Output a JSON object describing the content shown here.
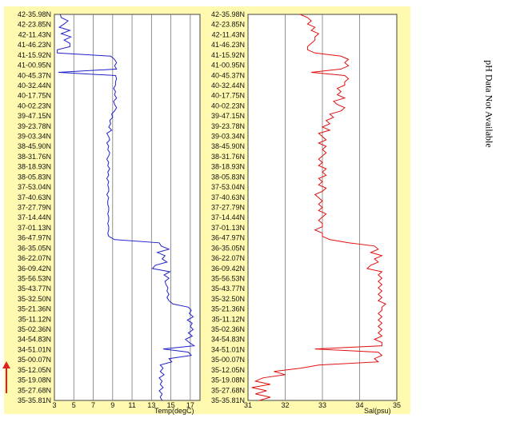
{
  "side_note": "pH Data Not Available",
  "direction_arrow": {
    "icon": "red-up-arrow-icon",
    "color": "#e02020"
  },
  "chart_data": [
    {
      "type": "line",
      "xlabel": "Temp(degC)",
      "xlim": [
        3,
        18
      ],
      "xticks": [
        "3",
        "5",
        "7",
        "9",
        "11",
        "13",
        "15",
        "17"
      ],
      "line_color": "#2222cc",
      "background": "#fffab0",
      "grid": true,
      "y_tick_labels": [
        "42-35.98N",
        "42-23.85N",
        "42-11.43N",
        "41-46.23N",
        "41-15.92N",
        "41-00.95N",
        "40-45.37N",
        "40-32.44N",
        "40-17.75N",
        "40-02.23N",
        "39-47.15N",
        "39-23.78N",
        "39-03.34N",
        "38-45.90N",
        "38-31.76N",
        "38-18.93N",
        "38-05.83N",
        "37-53.04N",
        "37-40.63N",
        "37-27.79N",
        "37-14.44N",
        "37-01.13N",
        "36-47.97N",
        "36-35.05N",
        "36-22.07N",
        "36-09.42N",
        "35-56.53N",
        "35-43.77N",
        "35-32.50N",
        "35-21.36N",
        "35-11.12N",
        "35-02.36N",
        "34-54.83N",
        "34-51.01N",
        "35-00.07N",
        "35-12.05N",
        "35-19.08N",
        "35-27.68N",
        "35-35.81N"
      ],
      "values": [
        3.6,
        3.7,
        4.4,
        4.0,
        3.5,
        4.6,
        3.7,
        4.7,
        4.0,
        4.6,
        4.6,
        3.3,
        3.3,
        8.8,
        9.2,
        9.4,
        9.2,
        9.4,
        3.4,
        9.3,
        9.4,
        9.3,
        9.3,
        9.1,
        9.3,
        9.2,
        9.4,
        9.1,
        9.2,
        9.4,
        9.2,
        8.9,
        9.0,
        8.7,
        8.8,
        8.6,
        8.9,
        8.4,
        8.6,
        8.7,
        8.4,
        8.6,
        8.5,
        8.7,
        8.6,
        8.4,
        8.6,
        8.5,
        8.7,
        8.5,
        8.6,
        8.4,
        8.6,
        8.5,
        8.6,
        8.6,
        8.4,
        8.6,
        8.5,
        8.5,
        8.6,
        8.6,
        8.5,
        8.6,
        8.6,
        8.5,
        8.6,
        8.6,
        8.5,
        8.6,
        9.2,
        13.8,
        14.0,
        14.8,
        13.6,
        14.4,
        14.1,
        14.6,
        13.4,
        13.1,
        14.9,
        14.3,
        14.8,
        14.4,
        14.5,
        14.7,
        14.6,
        14.8,
        14.6,
        14.8,
        15.2,
        16.8,
        17.1,
        16.9,
        17.3,
        16.7,
        17.2,
        17.0,
        17.3,
        16.8,
        17.2,
        16.5,
        16.9,
        17.4,
        14.2,
        16.8,
        17.1,
        14.8,
        15.1,
        13.9,
        14.2,
        13.9,
        14.3,
        13.8,
        14.1,
        13.9,
        14.2,
        13.8,
        14.1,
        13.9,
        14.1
      ]
    },
    {
      "type": "line",
      "xlabel": "Sal(psu)",
      "xlim": [
        31,
        35
      ],
      "xticks": [
        "31",
        "32",
        "33",
        "34",
        "35"
      ],
      "line_color": "#e01010",
      "background": "#fffab0",
      "grid": true,
      "y_tick_labels": [
        "42-35.98N",
        "42-23.85N",
        "42-11.43N",
        "41-46.23N",
        "41-15.92N",
        "41-00.95N",
        "40-45.37N",
        "40-32.44N",
        "40-17.75N",
        "40-02.23N",
        "39-47.15N",
        "39-23.78N",
        "39-03.34N",
        "38-45.90N",
        "38-31.76N",
        "38-18.93N",
        "38-05.83N",
        "37-53.04N",
        "37-40.63N",
        "37-27.79N",
        "37-14.44N",
        "37-01.13N",
        "36-47.97N",
        "36-35.05N",
        "36-22.07N",
        "36-09.42N",
        "35-56.53N",
        "35-43.77N",
        "35-32.50N",
        "35-21.36N",
        "35-11.12N",
        "35-02.36N",
        "34-54.83N",
        "34-51.01N",
        "35-00.07N",
        "35-12.05N",
        "35-19.08N",
        "35-27.68N",
        "35-35.81N"
      ],
      "values": [
        32.4,
        32.6,
        32.7,
        32.6,
        32.8,
        32.7,
        32.9,
        32.8,
        32.8,
        32.7,
        32.6,
        32.6,
        32.8,
        33.5,
        33.7,
        33.6,
        33.7,
        33.5,
        32.7,
        33.6,
        33.7,
        33.6,
        33.6,
        33.4,
        33.5,
        33.4,
        33.6,
        33.3,
        33.4,
        33.6,
        33.5,
        33.2,
        33.3,
        33.1,
        33.2,
        33.0,
        33.2,
        32.9,
        33.0,
        33.1,
        32.9,
        33.1,
        33.0,
        33.1,
        33.0,
        32.9,
        33.0,
        32.9,
        33.1,
        33.0,
        33.1,
        32.9,
        33.0,
        32.9,
        33.1,
        33.0,
        32.8,
        32.9,
        33.0,
        32.9,
        33.0,
        32.9,
        33.1,
        33.0,
        32.9,
        33.0,
        33.0,
        32.8,
        33.0,
        33.0,
        33.2,
        33.7,
        34.4,
        34.5,
        34.3,
        34.6,
        34.4,
        34.5,
        34.3,
        34.2,
        34.6,
        34.5,
        34.6,
        34.5,
        34.6,
        34.5,
        34.6,
        34.5,
        34.6,
        34.5,
        34.7,
        34.6,
        34.6,
        34.5,
        34.6,
        34.5,
        34.6,
        34.5,
        34.6,
        34.5,
        34.6,
        34.4,
        34.6,
        34.6,
        32.8,
        34.5,
        34.6,
        34.4,
        34.5,
        32.9,
        32.4,
        31.7,
        32.0,
        31.4,
        31.2,
        31.6,
        31.1,
        31.5,
        31.2,
        31.6,
        31.3
      ]
    }
  ]
}
